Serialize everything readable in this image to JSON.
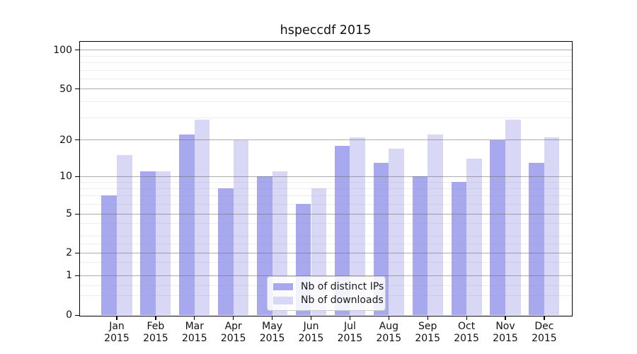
{
  "title": "hspeccdf 2015",
  "legend": {
    "items": [
      {
        "label": "Nb of distinct IPs",
        "color": "#a8a8ee"
      },
      {
        "label": "Nb of downloads",
        "color": "#d8d8f6"
      }
    ],
    "position": "lower center"
  },
  "axes": {
    "y_major_ticks": [
      {
        "value": 0,
        "label": "0"
      },
      {
        "value": 1,
        "label": "1"
      },
      {
        "value": 2,
        "label": "2"
      },
      {
        "value": 5,
        "label": "5"
      },
      {
        "value": 10,
        "label": "10"
      },
      {
        "value": 20,
        "label": "20"
      },
      {
        "value": 50,
        "label": "50"
      },
      {
        "value": 100,
        "label": "100"
      }
    ],
    "y_minor_ticks": [
      0.5,
      0.75,
      1.5,
      2.5,
      3,
      4,
      6,
      7,
      8,
      9,
      30,
      40,
      60,
      70,
      80,
      90
    ],
    "x_tick_year": "2015"
  },
  "chart_data": {
    "type": "bar",
    "title": "hspeccdf 2015",
    "xlabel": "",
    "ylabel": "",
    "yscale": "symlog-like (log above ~2, linear 0-1)",
    "ylim": [
      0,
      118
    ],
    "grid": "horizontal major+minor, drawn above bars",
    "legend_position": "lower center",
    "categories": [
      "Jan 2015",
      "Feb 2015",
      "Mar 2015",
      "Apr 2015",
      "May 2015",
      "Jun 2015",
      "Jul 2015",
      "Aug 2015",
      "Sep 2015",
      "Oct 2015",
      "Nov 2015",
      "Dec 2015"
    ],
    "months": [
      "Jan",
      "Feb",
      "Mar",
      "Apr",
      "May",
      "Jun",
      "Jul",
      "Aug",
      "Sep",
      "Oct",
      "Nov",
      "Dec"
    ],
    "series": [
      {
        "name": "Nb of distinct IPs",
        "color": "#a8a8ee",
        "values": [
          7,
          11,
          22,
          8,
          10,
          6,
          18,
          13,
          10,
          9,
          20,
          13
        ]
      },
      {
        "name": "Nb of downloads",
        "color": "#d8d8f6",
        "values": [
          15,
          11,
          29,
          20,
          11,
          8,
          21,
          17,
          22,
          14,
          29,
          21
        ]
      }
    ]
  }
}
